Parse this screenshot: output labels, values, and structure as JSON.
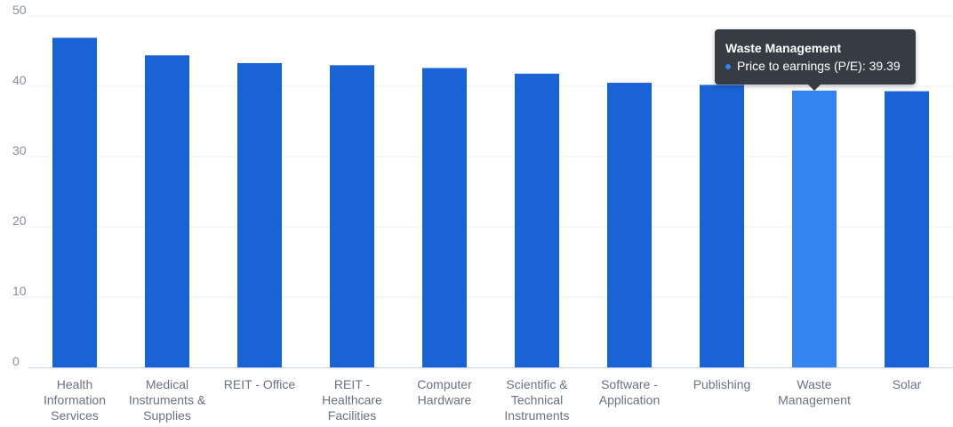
{
  "chart_data": {
    "type": "bar",
    "title": "",
    "xlabel": "",
    "ylabel": "",
    "ylim": [
      0,
      50
    ],
    "yticks": [
      0,
      10,
      20,
      30,
      40,
      50
    ],
    "grid": true,
    "legend": "none",
    "categories": [
      "Health Information Services",
      "Medical Instruments & Supplies",
      "REIT - Office",
      "REIT - Healthcare Facilities",
      "Computer Hardware",
      "Scientific & Technical Instruments",
      "Software - Application",
      "Publishing",
      "Waste Management",
      "Solar"
    ],
    "category_label_lines": [
      [
        "Health",
        "Information",
        "Services"
      ],
      [
        "Medical",
        "Instruments &",
        "Supplies"
      ],
      [
        "REIT - Office"
      ],
      [
        "REIT -",
        "Healthcare",
        "Facilities"
      ],
      [
        "Computer",
        "Hardware"
      ],
      [
        "Scientific &",
        "Technical",
        "Instruments"
      ],
      [
        "Software -",
        "Application"
      ],
      [
        "Publishing"
      ],
      [
        "Waste",
        "Management"
      ],
      [
        "Solar"
      ]
    ],
    "series": [
      {
        "name": "Price to earnings (P/E)",
        "values": [
          46.9,
          44.4,
          43.3,
          43.0,
          42.6,
          41.8,
          40.5,
          40.2,
          39.39,
          39.3
        ]
      }
    ],
    "highlighted_index": 8
  },
  "tooltip": {
    "title": "Waste Management",
    "series_label": "Price to earnings (P/E)",
    "value_text": "39.39"
  },
  "colors": {
    "bar": "#1a63d6",
    "bar_highlight": "#3483f0",
    "grid": "#eef0f3",
    "axis": "#c9d6ea",
    "tooltip_bg": "#363b44",
    "tooltip_dot": "#3483f0"
  }
}
